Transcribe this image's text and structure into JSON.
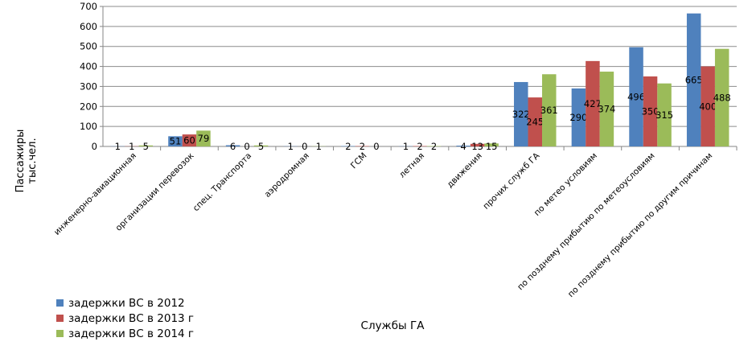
{
  "chart_data": {
    "type": "bar",
    "title": "",
    "xlabel": "Службы ГА",
    "ylabel": "Пассажиры тыс.чел.",
    "ylim": [
      0,
      700
    ],
    "yticks": [
      0,
      100,
      200,
      300,
      400,
      500,
      600,
      700
    ],
    "grid": true,
    "legend_position": "bottom-left",
    "categories": [
      "инженерно-авиационная",
      "организации перевозок",
      "спец. Транспорта",
      "аэродромная",
      "ГСМ",
      "летная",
      "движения",
      "прочих служб ГА",
      "по метео условиям",
      "по позднему прибытию по метеоусловиям",
      "по позднему прибытию по другим причинам"
    ],
    "series": [
      {
        "name": "задержки ВС в 2012",
        "color": "#4F81BD",
        "values": [
          1,
          51,
          6,
          1,
          2,
          1,
          4,
          322,
          290,
          496,
          665
        ]
      },
      {
        "name": "задержки ВС в 2013 г",
        "color": "#C0504D",
        "values": [
          1,
          60,
          0,
          0,
          2,
          2,
          13,
          245,
          427,
          350,
          400
        ]
      },
      {
        "name": "задержки ВС в 2014 г",
        "color": "#9BBB59",
        "values": [
          5,
          79,
          5,
          1,
          0,
          2,
          15,
          361,
          374,
          315,
          488
        ]
      }
    ]
  }
}
